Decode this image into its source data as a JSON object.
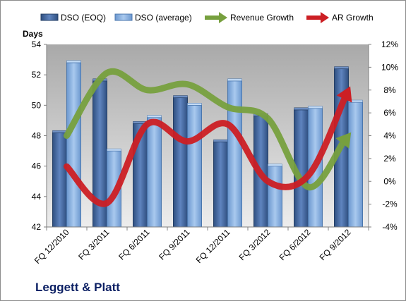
{
  "chart_data": {
    "type": "bar",
    "company": "Leggett & Platt",
    "y_left_label": "Days",
    "categories": [
      "FQ 12/2010",
      "FQ 3/2011",
      "FQ 6/2011",
      "FQ 9/2011",
      "FQ 12/2011",
      "FQ 3/2012",
      "FQ 6/2012",
      "FQ 9/2012"
    ],
    "series": [
      {
        "name": "DSO (EOQ)",
        "type": "bar",
        "axis": "left",
        "color": "#4f6fa3",
        "values": [
          48.2,
          51.6,
          48.8,
          50.5,
          47.6,
          49.3,
          49.7,
          52.4
        ]
      },
      {
        "name": "DSO (average)",
        "type": "bar",
        "axis": "left",
        "color": "#8cb4e0",
        "values": [
          52.8,
          47.0,
          49.2,
          50.0,
          51.6,
          46.0,
          49.8,
          50.2
        ]
      },
      {
        "name": "Revenue Growth",
        "type": "line",
        "axis": "right",
        "color": "#77a03e",
        "values": [
          4.0,
          9.5,
          8.0,
          8.5,
          6.5,
          5.5,
          -0.5,
          4.0
        ]
      },
      {
        "name": "AR Growth",
        "type": "line",
        "axis": "right",
        "color": "#cc1f24",
        "values": [
          1.3,
          -1.9,
          5.0,
          3.5,
          5.0,
          0.0,
          0.5,
          8.0
        ]
      }
    ],
    "y_left": {
      "min": 42,
      "max": 54,
      "step": 2,
      "ticks": [
        "42",
        "44",
        "46",
        "48",
        "50",
        "52",
        "54"
      ]
    },
    "y_right": {
      "min": -4,
      "max": 12,
      "step": 2,
      "ticks": [
        "-4%",
        "-2%",
        "0%",
        "2%",
        "4%",
        "6%",
        "8%",
        "10%",
        "12%"
      ]
    },
    "grid": false,
    "plot_background": "#b3b3b3",
    "legend_position": "top"
  }
}
